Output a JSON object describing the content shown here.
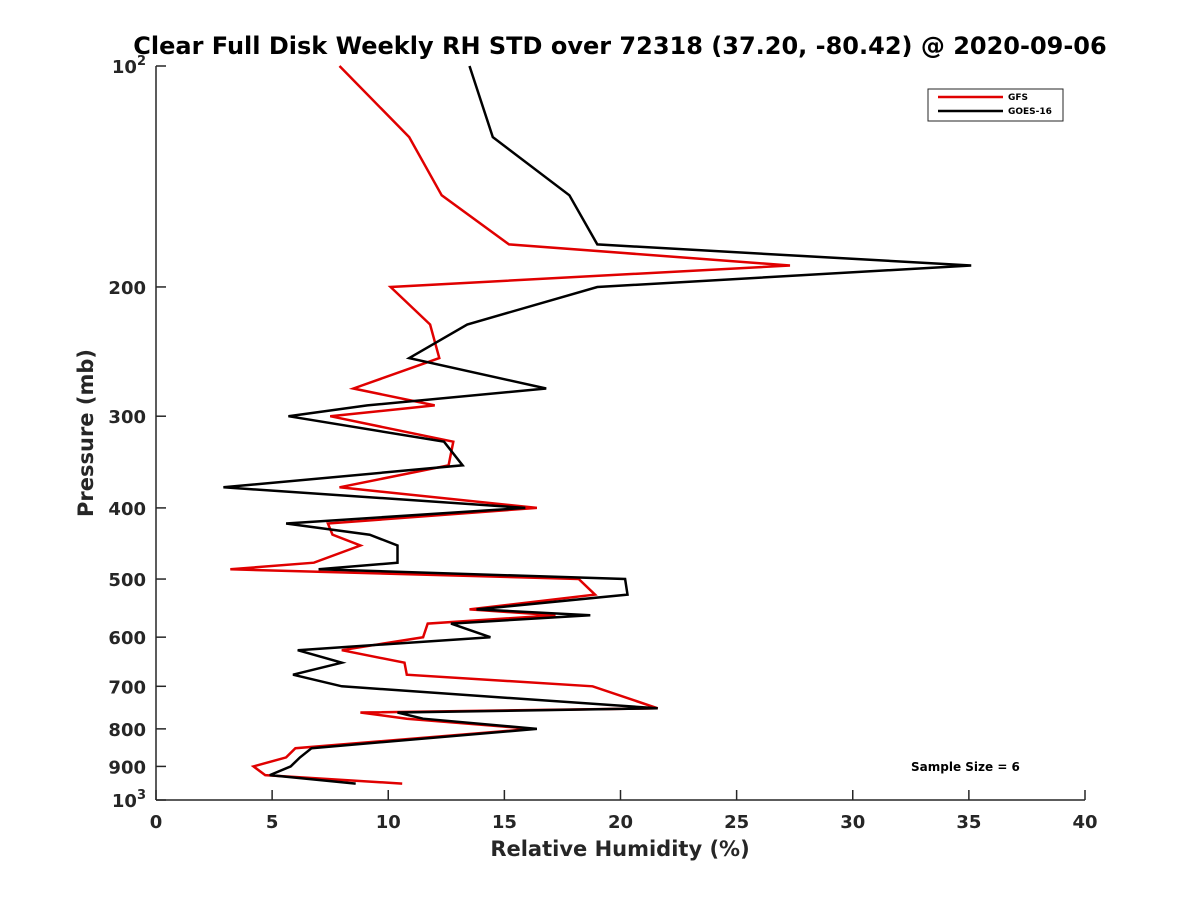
{
  "chart_data": {
    "type": "line",
    "title": "Clear Full Disk Weekly RH STD over 72318 (37.20, -80.42) @ 2020-09-06",
    "xlabel": "Relative Humidity (%)",
    "ylabel": "Pressure (mb)",
    "xlim": [
      0,
      40
    ],
    "ylim": [
      100,
      1000
    ],
    "yscale": "log",
    "y_reversed": true,
    "grid": false,
    "legend_position": "top-right",
    "xticks": [
      "0",
      "5",
      "10",
      "15",
      "20",
      "25",
      "30",
      "35",
      "40"
    ],
    "yticks": [
      {
        "value": 100,
        "label": "10",
        "sup": "2"
      },
      {
        "value": 200,
        "label": "200"
      },
      {
        "value": 300,
        "label": "300"
      },
      {
        "value": 400,
        "label": "400"
      },
      {
        "value": 500,
        "label": "500"
      },
      {
        "value": 600,
        "label": "600"
      },
      {
        "value": 700,
        "label": "700"
      },
      {
        "value": 800,
        "label": "800"
      },
      {
        "value": 900,
        "label": "900"
      },
      {
        "value": 1000,
        "label": "10",
        "sup": "3"
      }
    ],
    "annotation": "Sample Size = 6",
    "series": [
      {
        "name": "GFS",
        "color": "#e00000",
        "points": [
          [
            7.9,
            100
          ],
          [
            10.9,
            125
          ],
          [
            12.3,
            150
          ],
          [
            15.2,
            175
          ],
          [
            27.3,
            187
          ],
          [
            10.1,
            200
          ],
          [
            11.8,
            225
          ],
          [
            12.2,
            250
          ],
          [
            8.5,
            275
          ],
          [
            12.0,
            290
          ],
          [
            7.5,
            300
          ],
          [
            12.8,
            325
          ],
          [
            12.6,
            350
          ],
          [
            7.9,
            375
          ],
          [
            16.4,
            400
          ],
          [
            7.4,
            420
          ],
          [
            7.6,
            435
          ],
          [
            8.8,
            450
          ],
          [
            6.8,
            475
          ],
          [
            3.2,
            485
          ],
          [
            18.2,
            500
          ],
          [
            18.9,
            525
          ],
          [
            13.5,
            550
          ],
          [
            17.2,
            560
          ],
          [
            11.7,
            575
          ],
          [
            11.5,
            600
          ],
          [
            8.0,
            625
          ],
          [
            10.7,
            650
          ],
          [
            10.8,
            675
          ],
          [
            18.8,
            700
          ],
          [
            21.6,
            750
          ],
          [
            8.8,
            760
          ],
          [
            10.8,
            775
          ],
          [
            16.2,
            800
          ],
          [
            6.0,
            850
          ],
          [
            5.6,
            875
          ],
          [
            4.2,
            900
          ],
          [
            4.7,
            925
          ],
          [
            10.6,
            950
          ]
        ]
      },
      {
        "name": "GOES-16",
        "color": "#000000",
        "points": [
          [
            13.5,
            100
          ],
          [
            14.5,
            125
          ],
          [
            17.8,
            150
          ],
          [
            19.0,
            175
          ],
          [
            35.1,
            187
          ],
          [
            19.0,
            200
          ],
          [
            13.4,
            225
          ],
          [
            10.9,
            250
          ],
          [
            16.8,
            275
          ],
          [
            9.1,
            290
          ],
          [
            5.7,
            300
          ],
          [
            12.4,
            325
          ],
          [
            13.2,
            350
          ],
          [
            2.9,
            375
          ],
          [
            15.9,
            400
          ],
          [
            5.6,
            420
          ],
          [
            9.2,
            435
          ],
          [
            10.4,
            450
          ],
          [
            10.4,
            475
          ],
          [
            7.0,
            485
          ],
          [
            20.2,
            500
          ],
          [
            20.3,
            525
          ],
          [
            13.8,
            550
          ],
          [
            18.7,
            560
          ],
          [
            12.7,
            575
          ],
          [
            14.4,
            600
          ],
          [
            6.1,
            625
          ],
          [
            8.0,
            650
          ],
          [
            5.9,
            675
          ],
          [
            8.0,
            700
          ],
          [
            21.6,
            750
          ],
          [
            10.4,
            760
          ],
          [
            11.5,
            775
          ],
          [
            16.4,
            800
          ],
          [
            6.7,
            850
          ],
          [
            6.2,
            875
          ],
          [
            5.8,
            900
          ],
          [
            4.9,
            925
          ],
          [
            8.6,
            950
          ]
        ]
      }
    ]
  }
}
